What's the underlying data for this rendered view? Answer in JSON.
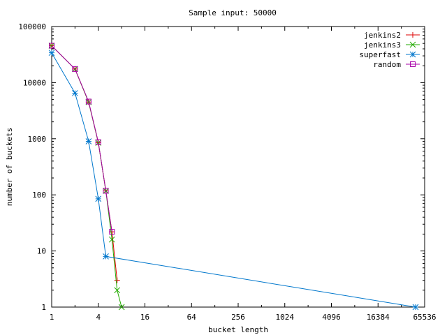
{
  "chart_data": {
    "type": "line",
    "title": "Sample input: 50000",
    "xlabel": "bucket length",
    "ylabel": "number of buckets",
    "x_scale": "log2",
    "y_scale": "log10",
    "xlim": [
      1,
      65536
    ],
    "ylim": [
      1,
      100000
    ],
    "x_ticks": [
      1,
      4,
      16,
      64,
      256,
      1024,
      4096,
      16384,
      65536
    ],
    "x_tick_labels": [
      "1",
      "4",
      "16",
      "64",
      "256",
      "1024",
      "4096",
      "16384",
      "65536"
    ],
    "y_ticks": [
      1,
      10,
      100,
      1000,
      10000,
      100000
    ],
    "y_tick_labels": [
      "1",
      "10",
      "100",
      "1000",
      "10000",
      "100000"
    ],
    "grid": false,
    "legend_position": "top-right",
    "series": [
      {
        "name": "jenkins2",
        "color": "#dd0000",
        "marker": "plus",
        "points": [
          [
            1,
            45500
          ],
          [
            2,
            17500
          ],
          [
            3,
            4500
          ],
          [
            4,
            850
          ],
          [
            5,
            118
          ],
          [
            6,
            22
          ],
          [
            7,
            3
          ]
        ]
      },
      {
        "name": "jenkins3",
        "color": "#22aa00",
        "marker": "cross",
        "points": [
          [
            1,
            45500
          ],
          [
            2,
            17500
          ],
          [
            3,
            4500
          ],
          [
            4,
            850
          ],
          [
            5,
            118
          ],
          [
            6,
            16
          ],
          [
            7,
            2
          ],
          [
            8,
            1
          ]
        ]
      },
      {
        "name": "superfast",
        "color": "#0077cc",
        "marker": "star",
        "points": [
          [
            1,
            34000
          ],
          [
            2,
            6500
          ],
          [
            3,
            900
          ],
          [
            4,
            85
          ],
          [
            5,
            8
          ],
          [
            50000,
            1
          ]
        ]
      },
      {
        "name": "random",
        "color": "#aa00aa",
        "marker": "square",
        "points": [
          [
            1,
            45500
          ],
          [
            2,
            17500
          ],
          [
            3,
            4600
          ],
          [
            4,
            870
          ],
          [
            5,
            118
          ],
          [
            6,
            22
          ]
        ]
      }
    ]
  }
}
